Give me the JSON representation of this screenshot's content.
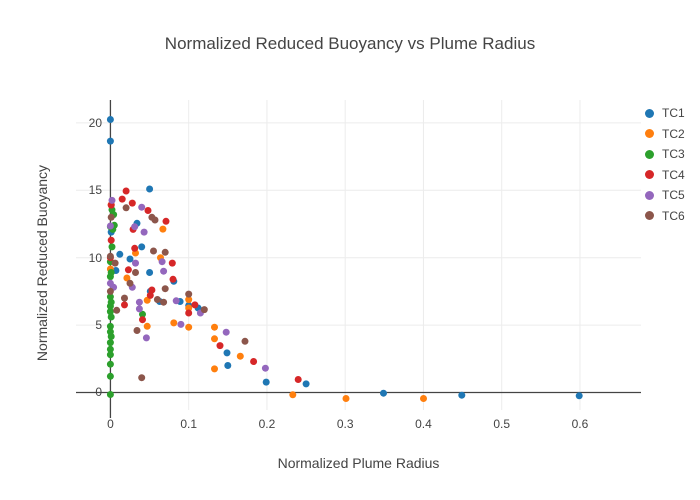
{
  "chart_data": {
    "type": "scatter",
    "title": "Normalized Reduced Buoyancy vs Plume Radius",
    "xlabel": "Normalized Plume Radius",
    "ylabel": "Normalized Reduced Buoyancy",
    "xlim": [
      -0.044,
      0.678
    ],
    "ylim": [
      -1.3,
      21.7
    ],
    "xticks": [
      0,
      0.1,
      0.2,
      0.3,
      0.4,
      0.5,
      0.6
    ],
    "xtick_labels": [
      "0",
      "0.1",
      "0.2",
      "0.3",
      "0.4",
      "0.5",
      "0.6"
    ],
    "yticks": [
      0,
      5,
      10,
      15,
      20
    ],
    "ytick_labels": [
      "0",
      "5",
      "10",
      "15",
      "20"
    ],
    "grid": true,
    "gridline_color": "#ececec",
    "zeroline_color": "#444444",
    "legend_position": "right",
    "marker_diameter_px": 7,
    "series": [
      {
        "name": "TC1",
        "color": "#1f77b4",
        "points": [
          [
            0.0,
            20.25
          ],
          [
            0.0,
            18.65
          ],
          [
            0.05,
            15.1
          ],
          [
            0.034,
            12.55
          ],
          [
            0.001,
            11.9
          ],
          [
            0.04,
            10.8
          ],
          [
            0.012,
            10.25
          ],
          [
            0.025,
            9.9
          ],
          [
            0.007,
            9.05
          ],
          [
            0.05,
            8.9
          ],
          [
            0.081,
            8.25
          ],
          [
            0.051,
            7.5
          ],
          [
            0.063,
            6.75
          ],
          [
            0.089,
            6.75
          ],
          [
            0.1,
            6.45
          ],
          [
            0.112,
            6.27
          ],
          [
            0.149,
            2.94
          ],
          [
            0.15,
            2.0
          ],
          [
            0.199,
            0.77
          ],
          [
            0.25,
            0.64
          ],
          [
            0.349,
            -0.05
          ],
          [
            0.449,
            -0.2
          ],
          [
            0.599,
            -0.25
          ]
        ]
      },
      {
        "name": "TC2",
        "color": "#ff7f0e",
        "points": [
          [
            0.001,
            13.93
          ],
          [
            0.067,
            12.12
          ],
          [
            0.032,
            10.35
          ],
          [
            0.064,
            10.0
          ],
          [
            0.0,
            9.16
          ],
          [
            0.021,
            8.49
          ],
          [
            0.047,
            6.84
          ],
          [
            0.1,
            6.89
          ],
          [
            0.1,
            6.27
          ],
          [
            0.081,
            5.16
          ],
          [
            0.047,
            4.91
          ],
          [
            0.1,
            4.84
          ],
          [
            0.133,
            4.84
          ],
          [
            0.133,
            3.98
          ],
          [
            0.166,
            2.69
          ],
          [
            0.133,
            1.75
          ],
          [
            0.233,
            -0.17
          ],
          [
            0.301,
            -0.45
          ],
          [
            0.4,
            -0.45
          ]
        ]
      },
      {
        "name": "TC3",
        "color": "#2ca02c",
        "points": [
          [
            0.002,
            13.55
          ],
          [
            0.004,
            13.2
          ],
          [
            0.005,
            12.4
          ],
          [
            0.0,
            12.3
          ],
          [
            0.003,
            12.1
          ],
          [
            0.002,
            10.8
          ],
          [
            0.0,
            9.7
          ],
          [
            0.001,
            8.9
          ],
          [
            0.0,
            8.6
          ],
          [
            0.0,
            7.1
          ],
          [
            0.001,
            6.7
          ],
          [
            0.0,
            6.4
          ],
          [
            0.0,
            6.0
          ],
          [
            0.001,
            5.6
          ],
          [
            0.0,
            4.9
          ],
          [
            0.0,
            4.5
          ],
          [
            0.001,
            4.15
          ],
          [
            0.0,
            3.7
          ],
          [
            0.0,
            3.2
          ],
          [
            0.0,
            2.8
          ],
          [
            0.0,
            2.1
          ],
          [
            0.0,
            1.2
          ],
          [
            0.0,
            -0.15
          ],
          [
            0.041,
            5.8
          ]
        ]
      },
      {
        "name": "TC4",
        "color": "#d62728",
        "points": [
          [
            0.02,
            14.95
          ],
          [
            0.015,
            14.35
          ],
          [
            0.028,
            14.05
          ],
          [
            0.001,
            13.9
          ],
          [
            0.048,
            13.5
          ],
          [
            0.071,
            12.7
          ],
          [
            0.029,
            12.1
          ],
          [
            0.001,
            11.3
          ],
          [
            0.031,
            10.7
          ],
          [
            0.0,
            10.0
          ],
          [
            0.079,
            9.6
          ],
          [
            0.023,
            9.1
          ],
          [
            0.08,
            8.4
          ],
          [
            0.053,
            7.6
          ],
          [
            0.051,
            7.2
          ],
          [
            0.108,
            6.5
          ],
          [
            0.018,
            6.5
          ],
          [
            0.1,
            5.9
          ],
          [
            0.041,
            5.4
          ],
          [
            0.14,
            3.48
          ],
          [
            0.183,
            2.3
          ],
          [
            0.24,
            0.96
          ]
        ]
      },
      {
        "name": "TC5",
        "color": "#9467bd",
        "points": [
          [
            0.002,
            14.25
          ],
          [
            0.04,
            13.75
          ],
          [
            0.0,
            12.35
          ],
          [
            0.031,
            12.3
          ],
          [
            0.043,
            11.9
          ],
          [
            0.066,
            9.7
          ],
          [
            0.032,
            9.6
          ],
          [
            0.068,
            9.0
          ],
          [
            0.0,
            8.1
          ],
          [
            0.004,
            7.8
          ],
          [
            0.028,
            7.8
          ],
          [
            0.084,
            6.8
          ],
          [
            0.037,
            6.7
          ],
          [
            0.037,
            6.2
          ],
          [
            0.115,
            5.9
          ],
          [
            0.09,
            5.05
          ],
          [
            0.148,
            4.47
          ],
          [
            0.046,
            4.05
          ],
          [
            0.198,
            1.8
          ]
        ]
      },
      {
        "name": "TC6",
        "color": "#8c564b",
        "points": [
          [
            0.02,
            13.7
          ],
          [
            0.001,
            13.0
          ],
          [
            0.053,
            13.0
          ],
          [
            0.057,
            12.8
          ],
          [
            0.055,
            10.5
          ],
          [
            0.07,
            10.4
          ],
          [
            0.0,
            10.1
          ],
          [
            0.006,
            9.6
          ],
          [
            0.032,
            8.9
          ],
          [
            0.025,
            8.1
          ],
          [
            0.07,
            7.7
          ],
          [
            0.0,
            7.5
          ],
          [
            0.1,
            7.3
          ],
          [
            0.018,
            7.0
          ],
          [
            0.06,
            6.9
          ],
          [
            0.068,
            6.7
          ],
          [
            0.12,
            6.15
          ],
          [
            0.008,
            6.1
          ],
          [
            0.034,
            4.6
          ],
          [
            0.172,
            3.8
          ],
          [
            0.04,
            1.1
          ]
        ]
      }
    ]
  }
}
